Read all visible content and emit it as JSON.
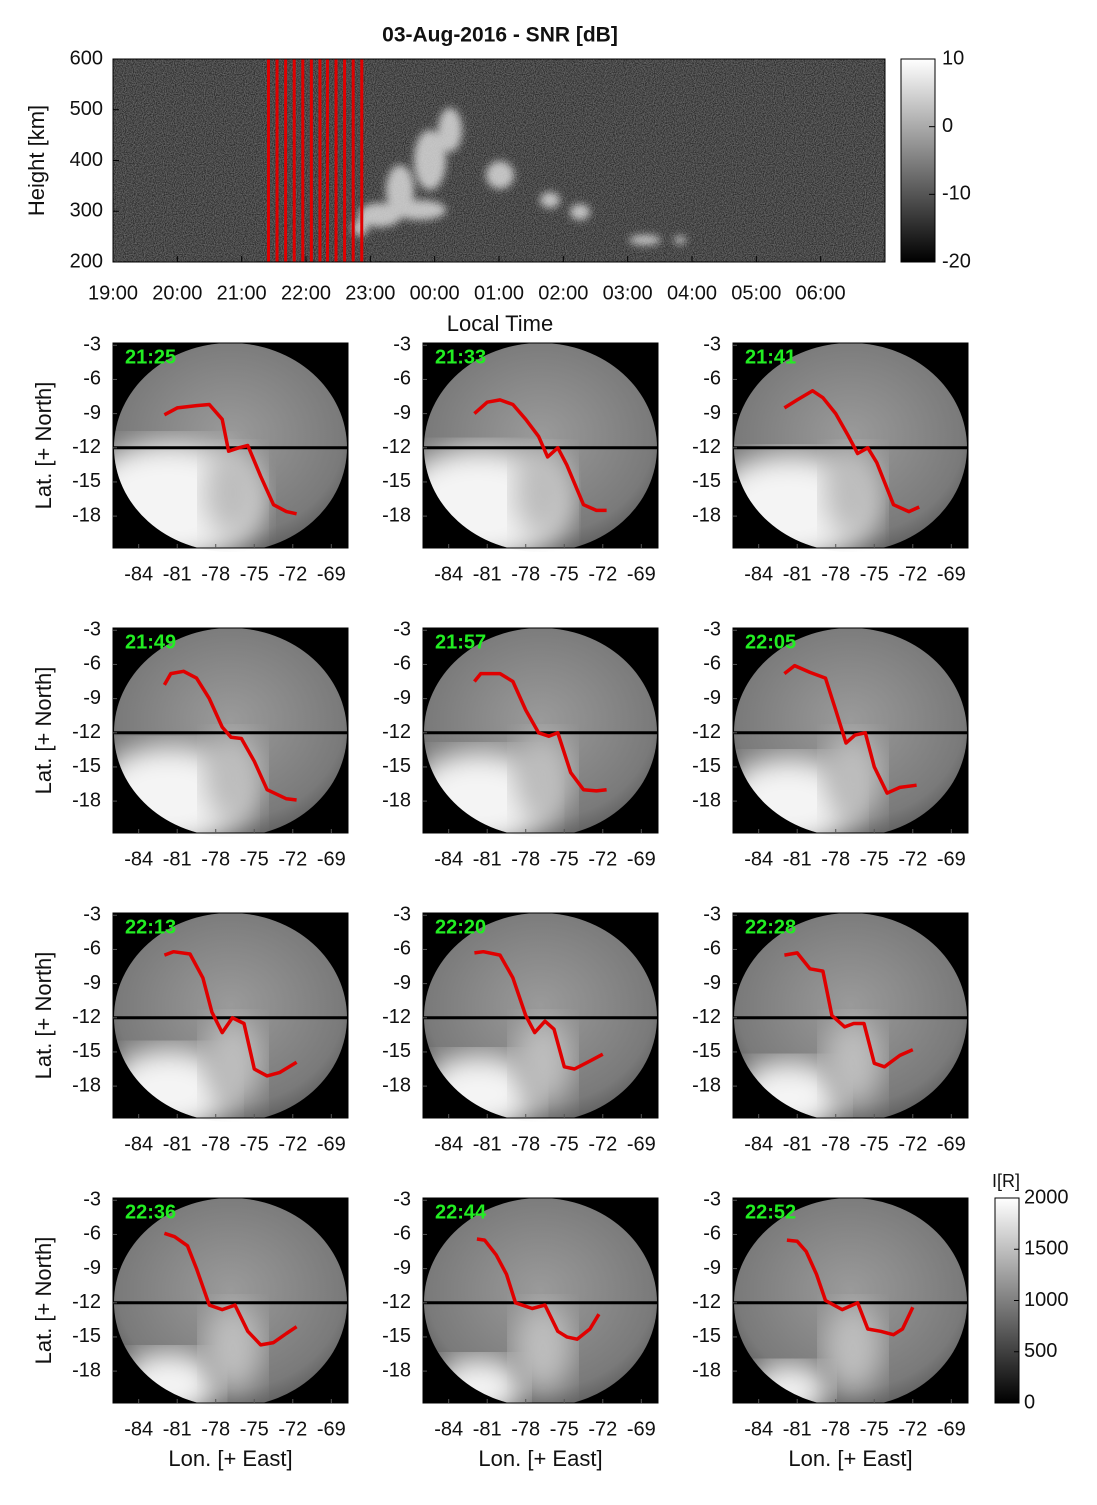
{
  "chart_data": [
    {
      "type": "heatmap",
      "title": "03-Aug-2016 - SNR [dB]",
      "xlabel": "Local Time",
      "ylabel": "Height [km]",
      "xlim": [
        19,
        31
      ],
      "ylim": [
        200,
        600
      ],
      "xticks": [
        {
          "value": 19,
          "label": "19:00"
        },
        {
          "value": 20,
          "label": "20:00"
        },
        {
          "value": 21,
          "label": "21:00"
        },
        {
          "value": 22,
          "label": "22:00"
        },
        {
          "value": 23,
          "label": "23:00"
        },
        {
          "value": 24,
          "label": "00:00"
        },
        {
          "value": 25,
          "label": "01:00"
        },
        {
          "value": 26,
          "label": "02:00"
        },
        {
          "value": 27,
          "label": "03:00"
        },
        {
          "value": 28,
          "label": "04:00"
        },
        {
          "value": 29,
          "label": "05:00"
        },
        {
          "value": 30,
          "label": "06:00"
        }
      ],
      "yticks": [
        200,
        300,
        400,
        500,
        600
      ],
      "colorbar": {
        "lim": [
          -20,
          10
        ],
        "ticks": [
          -20,
          -10,
          0,
          10
        ]
      },
      "marker_times": [
        21.4167,
        21.55,
        21.6833,
        21.8167,
        21.95,
        22.0833,
        22.2167,
        22.3333,
        22.4667,
        22.6,
        22.7333,
        22.8667
      ],
      "marker_color": "#e00000"
    },
    {
      "type": "line",
      "title": "21:25",
      "ylabel": "Lat. [+ North]",
      "xlim": [
        -86,
        -67.7
      ],
      "ylim": [
        -20.8,
        -2.8
      ],
      "xticks": [
        -84,
        -81,
        -78,
        -75,
        -72,
        -69
      ],
      "yticks": [
        -3,
        -6,
        -9,
        -12,
        -15,
        -18
      ],
      "hline": -12,
      "x": [
        -82,
        -81,
        -79.5,
        -78.5,
        -77.5,
        -77,
        -76.2,
        -75.5,
        -74.5,
        -73.5,
        -72.5,
        -71.7
      ],
      "series": [
        {
          "color": "#e00000",
          "values": [
            -9.1,
            -8.5,
            -8.3,
            -8.2,
            -9.5,
            -12.3,
            -12.0,
            -11.8,
            -14.5,
            -17.0,
            -17.6,
            -17.8
          ]
        }
      ]
    },
    {
      "type": "line",
      "title": "21:33",
      "xlim": [
        -86,
        -67.7
      ],
      "ylim": [
        -20.8,
        -2.8
      ],
      "xticks": [
        -84,
        -81,
        -78,
        -75,
        -72,
        -69
      ],
      "yticks": [
        -3,
        -6,
        -9,
        -12,
        -15,
        -18
      ],
      "hline": -12,
      "x": [
        -82,
        -81,
        -80,
        -79,
        -78,
        -77,
        -76.3,
        -75.5,
        -74.8,
        -73.5,
        -72.5,
        -71.7
      ],
      "series": [
        {
          "color": "#e00000",
          "values": [
            -9.0,
            -8.0,
            -7.8,
            -8.2,
            -9.5,
            -11.0,
            -12.8,
            -12.0,
            -13.5,
            -17.0,
            -17.5,
            -17.5
          ]
        }
      ]
    },
    {
      "type": "line",
      "title": "21:41",
      "xlim": [
        -86,
        -67.7
      ],
      "ylim": [
        -20.8,
        -2.8
      ],
      "xticks": [
        -84,
        -81,
        -78,
        -75,
        -72,
        -69
      ],
      "yticks": [
        -3,
        -6,
        -9,
        -12,
        -15,
        -18
      ],
      "hline": -12,
      "x": [
        -82,
        -81,
        -79.8,
        -79,
        -78,
        -77,
        -76.3,
        -75.5,
        -74.8,
        -73.5,
        -72.3,
        -71.5
      ],
      "series": [
        {
          "color": "#e00000",
          "values": [
            -8.5,
            -7.8,
            -7.0,
            -7.6,
            -9.0,
            -11.0,
            -12.5,
            -12.0,
            -13.3,
            -17.0,
            -17.6,
            -17.2
          ]
        }
      ]
    },
    {
      "type": "line",
      "title": "21:49",
      "ylabel": "Lat. [+ North]",
      "xlim": [
        -86,
        -67.7
      ],
      "ylim": [
        -20.8,
        -2.8
      ],
      "xticks": [
        -84,
        -81,
        -78,
        -75,
        -72,
        -69
      ],
      "yticks": [
        -3,
        -6,
        -9,
        -12,
        -15,
        -18
      ],
      "hline": -12,
      "x": [
        -82,
        -81.5,
        -80.5,
        -79.5,
        -78.5,
        -77.5,
        -76.8,
        -76,
        -75,
        -74,
        -72.5,
        -71.7
      ],
      "series": [
        {
          "color": "#e00000",
          "values": [
            -7.8,
            -6.8,
            -6.6,
            -7.2,
            -9.0,
            -11.5,
            -12.4,
            -12.5,
            -14.5,
            -17.0,
            -17.8,
            -17.9
          ]
        }
      ]
    },
    {
      "type": "line",
      "title": "21:57",
      "xlim": [
        -86,
        -67.7
      ],
      "ylim": [
        -20.8,
        -2.8
      ],
      "xticks": [
        -84,
        -81,
        -78,
        -75,
        -72,
        -69
      ],
      "yticks": [
        -3,
        -6,
        -9,
        -12,
        -15,
        -18
      ],
      "hline": -12,
      "x": [
        -82,
        -81.5,
        -80,
        -79,
        -78,
        -77,
        -76.2,
        -75.5,
        -74.5,
        -73.5,
        -72.5,
        -71.7
      ],
      "series": [
        {
          "color": "#e00000",
          "values": [
            -7.5,
            -6.8,
            -6.8,
            -7.5,
            -10.0,
            -12.0,
            -12.3,
            -12.0,
            -15.5,
            -17.0,
            -17.1,
            -17.0
          ]
        }
      ]
    },
    {
      "type": "line",
      "title": "22:05",
      "xlim": [
        -86,
        -67.7
      ],
      "ylim": [
        -20.8,
        -2.8
      ],
      "xticks": [
        -84,
        -81,
        -78,
        -75,
        -72,
        -69
      ],
      "yticks": [
        -3,
        -6,
        -9,
        -12,
        -15,
        -18
      ],
      "hline": -12,
      "x": [
        -82,
        -81.2,
        -80,
        -78.8,
        -78,
        -77.2,
        -76.5,
        -75.7,
        -75,
        -74,
        -73,
        -71.7
      ],
      "series": [
        {
          "color": "#e00000",
          "values": [
            -6.8,
            -6.1,
            -6.7,
            -7.2,
            -10.0,
            -12.9,
            -12.2,
            -12.0,
            -15.0,
            -17.3,
            -16.8,
            -16.6
          ]
        }
      ]
    },
    {
      "type": "line",
      "title": "22:13",
      "ylabel": "Lat. [+ North]",
      "xlim": [
        -86,
        -67.7
      ],
      "ylim": [
        -20.8,
        -2.8
      ],
      "xticks": [
        -84,
        -81,
        -78,
        -75,
        -72,
        -69
      ],
      "yticks": [
        -3,
        -6,
        -9,
        -12,
        -15,
        -18
      ],
      "hline": -12,
      "x": [
        -82,
        -81.3,
        -80,
        -79,
        -78.3,
        -77.5,
        -76.7,
        -75.8,
        -75,
        -74,
        -73,
        -71.7
      ],
      "series": [
        {
          "color": "#e00000",
          "values": [
            -6.5,
            -6.2,
            -6.4,
            -8.5,
            -11.5,
            -13.3,
            -12.0,
            -12.5,
            -16.5,
            -17.1,
            -16.8,
            -15.9
          ]
        }
      ]
    },
    {
      "type": "line",
      "title": "22:20",
      "xlim": [
        -86,
        -67.7
      ],
      "ylim": [
        -20.8,
        -2.8
      ],
      "xticks": [
        -84,
        -81,
        -78,
        -75,
        -72,
        -69
      ],
      "yticks": [
        -3,
        -6,
        -9,
        -12,
        -15,
        -18
      ],
      "hline": -12,
      "x": [
        -82,
        -81.3,
        -80,
        -79,
        -78,
        -77.3,
        -76.5,
        -75.8,
        -75,
        -74.2,
        -73,
        -72
      ],
      "series": [
        {
          "color": "#e00000",
          "values": [
            -6.3,
            -6.2,
            -6.5,
            -8.5,
            -11.8,
            -13.3,
            -12.3,
            -13.0,
            -16.3,
            -16.5,
            -15.8,
            -15.2
          ]
        }
      ]
    },
    {
      "type": "line",
      "title": "22:28",
      "xlim": [
        -86,
        -67.7
      ],
      "ylim": [
        -20.8,
        -2.8
      ],
      "xticks": [
        -84,
        -81,
        -78,
        -75,
        -72,
        -69
      ],
      "yticks": [
        -3,
        -6,
        -9,
        -12,
        -15,
        -18
      ],
      "hline": -12,
      "x": [
        -82,
        -81,
        -80,
        -79,
        -78.3,
        -77.3,
        -76.6,
        -75.8,
        -75,
        -74.2,
        -73,
        -72
      ],
      "series": [
        {
          "color": "#e00000",
          "values": [
            -6.5,
            -6.3,
            -7.7,
            -7.9,
            -11.8,
            -12.8,
            -12.5,
            -12.5,
            -16.0,
            -16.3,
            -15.3,
            -14.8
          ]
        }
      ]
    },
    {
      "type": "line",
      "title": "22:36",
      "ylabel": "Lat. [+ North]",
      "xlabel": "Lon. [+ East]",
      "xlim": [
        -86,
        -67.7
      ],
      "ylim": [
        -20.8,
        -2.8
      ],
      "xticks": [
        -84,
        -81,
        -78,
        -75,
        -72,
        -69
      ],
      "yticks": [
        -3,
        -6,
        -9,
        -12,
        -15,
        -18
      ],
      "hline": -12,
      "x": [
        -82,
        -81.2,
        -80.2,
        -79.5,
        -78.5,
        -77.5,
        -76.5,
        -75.5,
        -74.5,
        -73.5,
        -72.5,
        -71.7
      ],
      "series": [
        {
          "color": "#e00000",
          "values": [
            -5.9,
            -6.2,
            -7.0,
            -9.0,
            -12.2,
            -12.6,
            -12.2,
            -14.5,
            -15.7,
            -15.5,
            -14.7,
            -14.1
          ]
        }
      ]
    },
    {
      "type": "line",
      "title": "22:44",
      "xlabel": "Lon. [+ East]",
      "xlim": [
        -86,
        -67.7
      ],
      "ylim": [
        -20.8,
        -2.8
      ],
      "xticks": [
        -84,
        -81,
        -78,
        -75,
        -72,
        -69
      ],
      "yticks": [
        -3,
        -6,
        -9,
        -12,
        -15,
        -18
      ],
      "hline": -12,
      "x": [
        -81.8,
        -81.2,
        -80.3,
        -79.5,
        -78.8,
        -77.5,
        -76.5,
        -75.5,
        -74.8,
        -74,
        -73,
        -72.3
      ],
      "series": [
        {
          "color": "#e00000",
          "values": [
            -6.4,
            -6.5,
            -7.8,
            -9.5,
            -12.0,
            -12.5,
            -12.2,
            -14.5,
            -15.0,
            -15.2,
            -14.3,
            -13.0
          ]
        }
      ]
    },
    {
      "type": "line",
      "title": "22:52",
      "xlabel": "Lon. [+ East]",
      "xlim": [
        -86,
        -67.7
      ],
      "ylim": [
        -20.8,
        -2.8
      ],
      "xticks": [
        -84,
        -81,
        -78,
        -75,
        -72,
        -69
      ],
      "yticks": [
        -3,
        -6,
        -9,
        -12,
        -15,
        -18
      ],
      "hline": -12,
      "x": [
        -81.8,
        -81,
        -80.3,
        -79.5,
        -78.8,
        -77.5,
        -76.3,
        -75.5,
        -74.5,
        -73.5,
        -72.8,
        -72
      ],
      "series": [
        {
          "color": "#e00000",
          "values": [
            -6.5,
            -6.6,
            -7.5,
            -9.5,
            -11.8,
            -12.6,
            -12.0,
            -14.3,
            -14.5,
            -14.8,
            -14.3,
            -12.4
          ]
        }
      ]
    }
  ],
  "intensity_colorbar": {
    "label": "I[R]",
    "lim": [
      0,
      2000
    ],
    "ticks": [
      0,
      500,
      1000,
      1500,
      2000
    ]
  }
}
